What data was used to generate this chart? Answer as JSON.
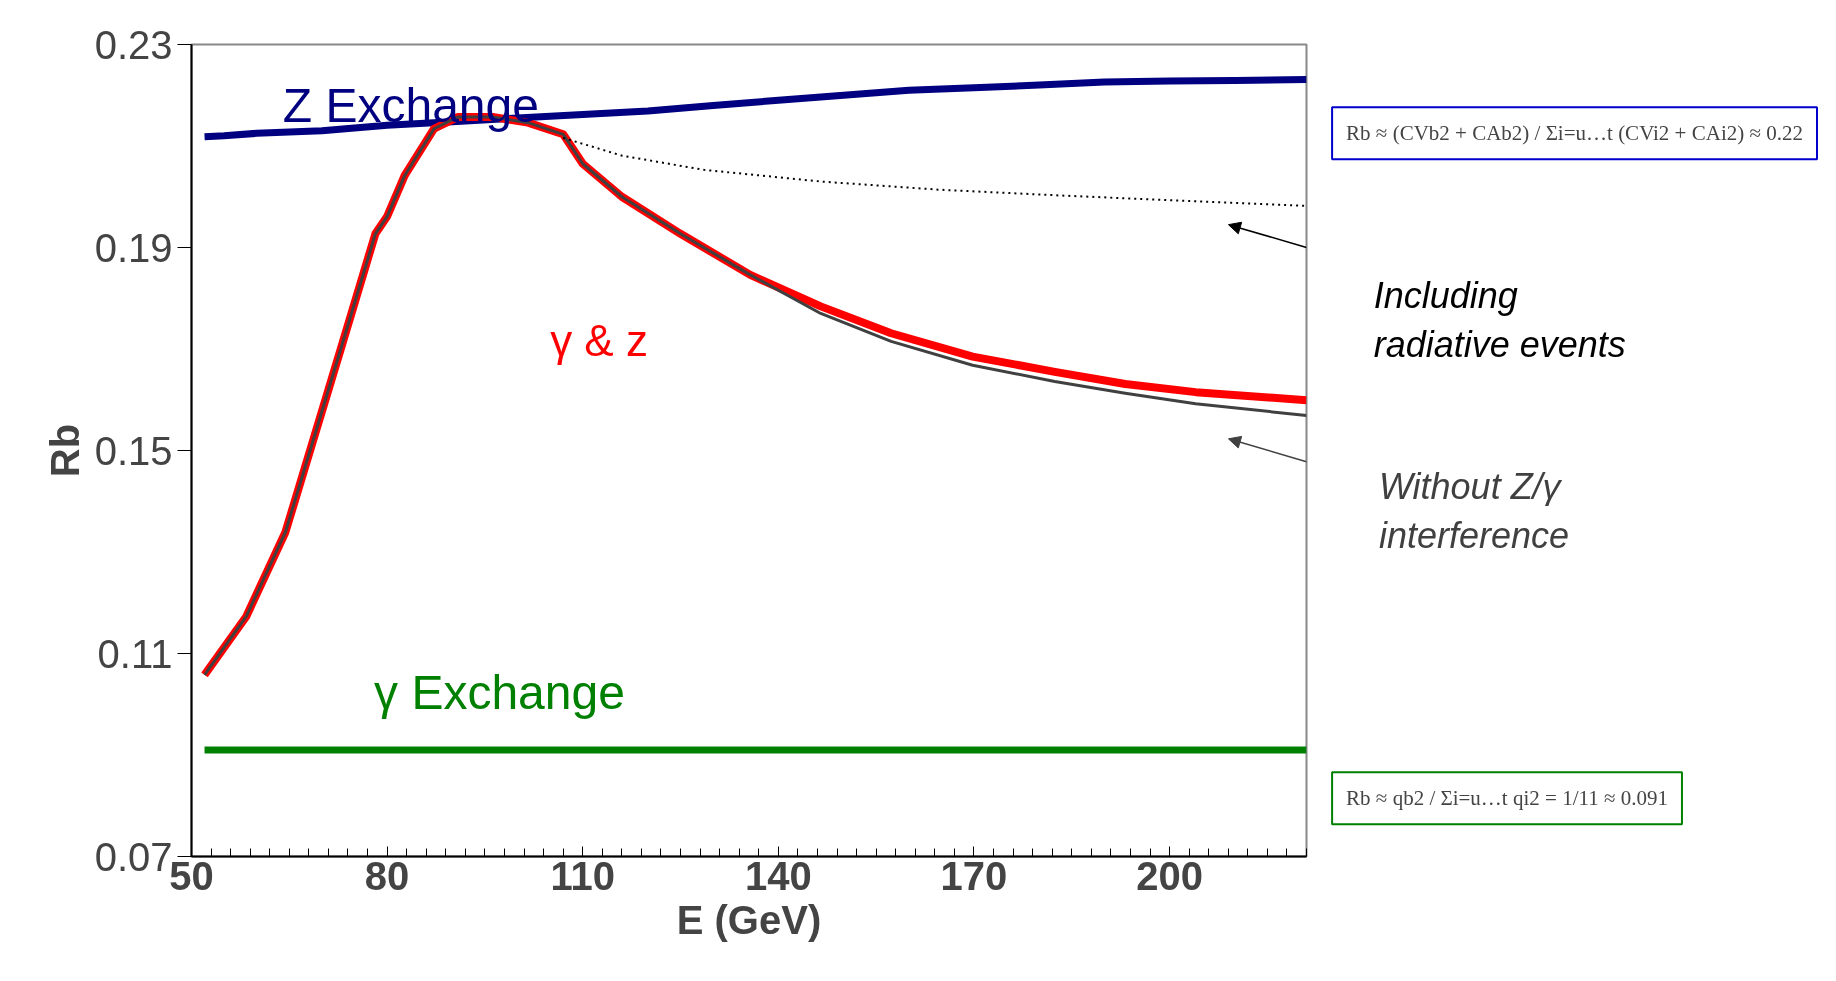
{
  "chart_data": {
    "type": "line",
    "xlabel": "E (GeV)",
    "ylabel": "Rb",
    "xlim": [
      50,
      221
    ],
    "ylim": [
      0.07,
      0.23
    ],
    "xticks": [
      50,
      80,
      110,
      140,
      170,
      200
    ],
    "yticks": [
      0.07,
      0.11,
      0.15,
      0.19,
      0.23
    ],
    "grid": false,
    "series": [
      {
        "name": "Z Exchange",
        "color": "#000080",
        "line_style": "solid",
        "x": [
          52,
          55,
          60,
          70,
          80,
          90,
          100,
          110,
          120,
          130,
          140,
          150,
          160,
          170,
          180,
          190,
          200,
          210,
          221
        ],
        "values": [
          0.2118,
          0.212,
          0.2125,
          0.213,
          0.2141,
          0.2148,
          0.2155,
          0.2162,
          0.2169,
          0.218,
          0.219,
          0.22,
          0.221,
          0.2215,
          0.222,
          0.2226,
          0.2228,
          0.2229,
          0.2231
        ]
      },
      {
        "name": "γ & z",
        "color": "#ff0000",
        "line_style": "solid",
        "x": [
          52,
          58.4,
          64.4,
          72.8,
          78.2,
          80,
          82.7,
          87.2,
          90.8,
          96.2,
          101.6,
          107,
          110,
          116,
          125,
          135.7,
          146.5,
          157.3,
          169.8,
          182.4,
          193.2,
          204,
          221
        ],
        "values": [
          0.1058,
          0.1173,
          0.1339,
          0.1696,
          0.1927,
          0.1961,
          0.2042,
          0.2134,
          0.2157,
          0.2157,
          0.2146,
          0.2123,
          0.2065,
          0.2,
          0.1927,
          0.1846,
          0.1784,
          0.1731,
          0.1685,
          0.1655,
          0.1631,
          0.1615,
          0.1599
        ]
      },
      {
        "name": "Without Z/γ\ninterference",
        "color": "#404040",
        "line_style": "solid",
        "x": [
          52,
          58.4,
          64.4,
          72.8,
          78.2,
          80,
          82.7,
          87.2,
          90.8,
          96.2,
          101.6,
          107,
          110,
          116,
          125,
          135.7,
          146.5,
          157.3,
          169.8,
          182.4,
          193.2,
          204,
          221
        ],
        "values": [
          0.1058,
          0.1173,
          0.1339,
          0.1696,
          0.1927,
          0.1961,
          0.2042,
          0.2134,
          0.2157,
          0.2157,
          0.2146,
          0.2123,
          0.2065,
          0.2,
          0.1927,
          0.1846,
          0.177,
          0.1715,
          0.1668,
          0.1636,
          0.1613,
          0.1592,
          0.1569
        ]
      },
      {
        "name": "Including\nradiative events",
        "color": "#000000",
        "line_style": "dotted",
        "x": [
          107,
          116,
          128.6,
          146.5,
          164.5,
          182.4,
          200.4,
          221
        ],
        "values": [
          0.2116,
          0.2081,
          0.2053,
          0.203,
          0.2014,
          0.2003,
          0.1993,
          0.1982
        ]
      },
      {
        "name": "γ Exchange",
        "color": "#008000",
        "line_style": "solid",
        "x": [
          52,
          221
        ],
        "values": [
          0.091,
          0.091
        ]
      }
    ],
    "annotations": [
      "Rb ≈ (CVb2 + CAb2) / Σi=u…t (CVi2 + CAi2) ≈ 0.22",
      "Rb ≈ qb2 / Σi=u…t qi2 = 1/11 ≈ 0.091"
    ]
  }
}
